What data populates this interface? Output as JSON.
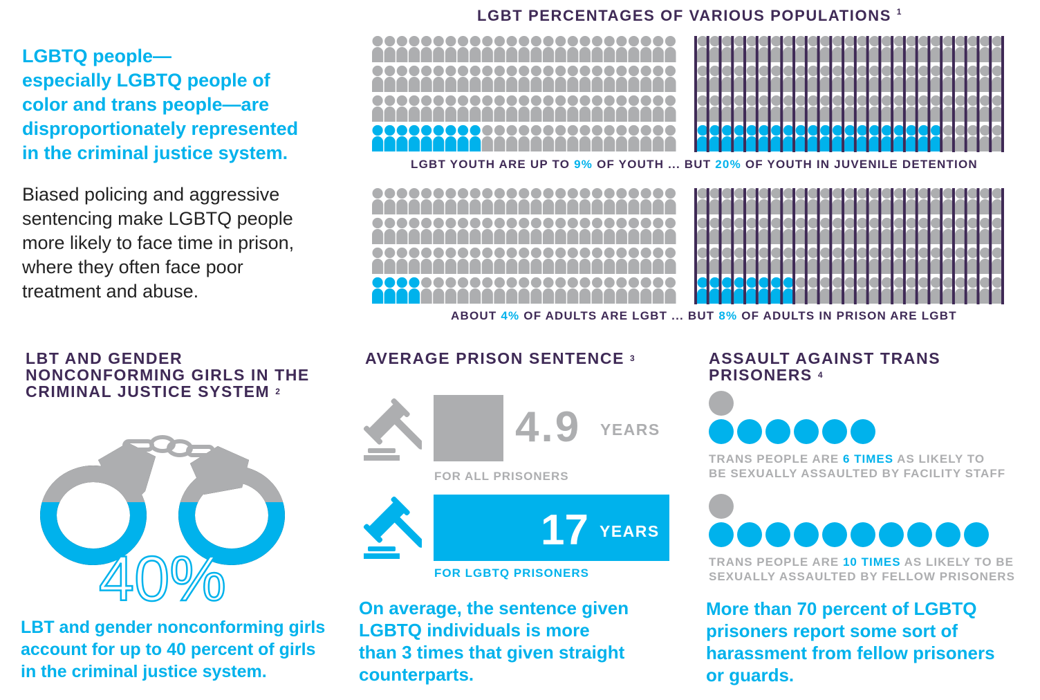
{
  "intro": {
    "lines": [
      "LGBTQ people—",
      "especially LGBTQ people of",
      "color and trans people—are",
      "disproportionately represented",
      "in the criminal justice system."
    ]
  },
  "body": {
    "lines": [
      "Biased policing and aggressive",
      "sentencing make LGBTQ people",
      "more likely to face time in prison,",
      "where they often face poor",
      "treatment and abuse."
    ]
  },
  "colors": {
    "accent": "#00b2ec",
    "gray": "#adaeb0",
    "heading": "#3f2a56",
    "text": "#222222"
  },
  "chart_data": [
    {
      "type": "pictograph",
      "title": "LGBT PERCENTAGES OF VARIOUS POPULATIONS",
      "footnote": "1",
      "unit": "percent",
      "total_icons": 100,
      "icon": "person-icon",
      "panels": [
        {
          "name": "youth",
          "value": 9,
          "bars": false
        },
        {
          "name": "youth in juvenile detention",
          "value": 20,
          "bars": true
        },
        {
          "name": "adults",
          "value": 4,
          "bars": false
        },
        {
          "name": "adults in prison",
          "value": 8,
          "bars": true
        }
      ]
    },
    {
      "type": "bar",
      "title": "AVERAGE PRISON SENTENCE",
      "footnote": "3",
      "categories": [
        "FOR ALL PRISONERS",
        "FOR LGBTQ PRISONERS"
      ],
      "values": [
        4.9,
        17
      ],
      "unit": "YEARS"
    },
    {
      "type": "pictograph",
      "title": "ASSAULT AGAINST TRANS PRISONERS",
      "footnote": "4",
      "rows": [
        {
          "baseline": 1,
          "value": 6
        },
        {
          "baseline": 1,
          "value": 10
        }
      ]
    },
    {
      "type": "pictograph",
      "title": "LBT AND GENDER NONCONFORMING GIRLS IN THE CRIMINAL JUSTICE SYSTEM",
      "footnote": "2",
      "value": 40,
      "unit": "percent",
      "icon": "handcuffs-icon"
    }
  ],
  "pop": {
    "title": "LGBT PERCENTAGES OF VARIOUS POPULATIONS",
    "sup": "1",
    "cap1": {
      "a": "LGBT YOUTH ARE UP TO ",
      "b": "9%",
      "c": " OF YOUTH ... BUT ",
      "d": "20%",
      "e": " OF YOUTH IN JUVENILE DETENTION"
    },
    "cap2": {
      "a": "ABOUT ",
      "b": "4%",
      "c": " OF ADULTS ARE LGBT ... BUT ",
      "d": "8%",
      "e": " OF ADULTS IN PRISON ARE LGBT"
    }
  },
  "girls": {
    "lines": [
      "LBT AND GENDER",
      "NONCONFORMING GIRLS IN THE",
      "CRIMINAL JUSTICE SYSTEM"
    ],
    "sup": "2",
    "pct": "40%",
    "stat": [
      "LBT and gender nonconforming girls",
      "account for up to 40 percent of girls",
      "in the criminal justice system."
    ]
  },
  "sentence": {
    "title": "AVERAGE PRISON SENTENCE",
    "sup": "3",
    "all_value": "4.9",
    "all_unit": "YEARS",
    "all_label": "FOR ALL PRISONERS",
    "lgbtq_value": "17",
    "lgbtq_unit": "YEARS",
    "lgbtq_label": "FOR LGBTQ PRISONERS",
    "stat": [
      "On average, the sentence given",
      "LGBTQ individuals is more",
      "than 3 times that given straight",
      "counterparts."
    ]
  },
  "assault": {
    "lines": [
      "ASSAULT AGAINST TRANS",
      "PRISONERS"
    ],
    "sup": "4",
    "cap1": {
      "a": "TRANS PEOPLE ARE ",
      "b": "6 TIMES",
      "c": " AS LIKELY TO",
      "d": "BE SEXUALLY ASSAULTED BY FACILITY STAFF"
    },
    "cap2": {
      "a": "TRANS PEOPLE ARE ",
      "b": "10 TIMES",
      "c": " AS LIKELY TO BE",
      "d": "SEXUALLY ASSAULTED BY FELLOW PRISONERS"
    },
    "stat": [
      "More than 70 percent of LGBTQ",
      "prisoners report some sort of",
      "harassment from fellow prisoners",
      "or guards."
    ]
  }
}
